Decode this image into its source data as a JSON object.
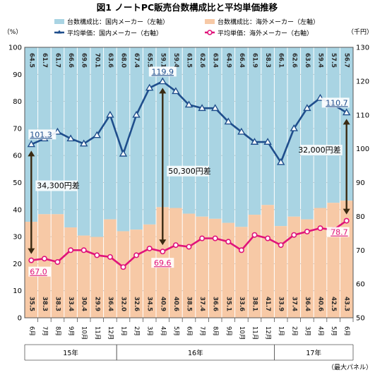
{
  "chart_data": {
    "type": "bar+line",
    "title": "図1 ノートPC販売台数構成比と平均単価推移",
    "left_axis": {
      "unit": "（%）",
      "min": 0,
      "max": 100,
      "step": 10
    },
    "right_axis": {
      "unit": "（千円）",
      "min": 50,
      "max": 130,
      "step": 10
    },
    "months": [
      "6月",
      "7月",
      "8月",
      "9月",
      "10月",
      "11月",
      "12月",
      "1月",
      "2月",
      "3月",
      "4月",
      "5月",
      "6月",
      "7月",
      "8月",
      "9月",
      "10月",
      "11月",
      "12月",
      "1月",
      "2月",
      "3月",
      "4月",
      "5月",
      "6月"
    ],
    "year_groups": [
      {
        "label": "15年",
        "start": 0,
        "end": 6
      },
      {
        "label": "16年",
        "start": 7,
        "end": 18
      },
      {
        "label": "17年",
        "start": 19,
        "end": 24
      }
    ],
    "series": [
      {
        "name": "台数構成比：国内メーカー（左軸）",
        "type": "stacked-bar",
        "axis": "left",
        "color": "#a9d4e3",
        "values": [
          64.5,
          61.7,
          61.7,
          66.6,
          69.6,
          70.1,
          63.6,
          68.0,
          67.4,
          65.5,
          59.1,
          59.4,
          61.5,
          62.6,
          63.4,
          64.9,
          66.4,
          61.9,
          58.3,
          66.1,
          62.6,
          63.6,
          59.4,
          57.5,
          56.7
        ]
      },
      {
        "name": "台数構成比：海外メーカー（左軸）",
        "type": "stacked-bar",
        "axis": "left",
        "color": "#f7c9a6",
        "values": [
          35.5,
          38.3,
          38.3,
          33.4,
          30.4,
          29.9,
          36.4,
          32.0,
          32.6,
          34.5,
          40.9,
          40.6,
          38.5,
          37.4,
          36.6,
          35.1,
          33.6,
          38.1,
          41.7,
          33.9,
          37.4,
          36.4,
          40.6,
          42.5,
          43.3
        ]
      },
      {
        "name": "平均単価：国内メーカー（右軸）",
        "type": "line",
        "axis": "right",
        "color": "#1f4e8c",
        "values": [
          101.3,
          103.0,
          105.0,
          103.0,
          101.5,
          104.0,
          110.0,
          98.5,
          110.0,
          118.0,
          119.9,
          117.0,
          113.0,
          112.0,
          112.0,
          108.0,
          105.0,
          102.0,
          102.0,
          96.0,
          106.0,
          112.0,
          115.0,
          113.0,
          110.7
        ]
      },
      {
        "name": "平均単価：海外メーカー（右軸）",
        "type": "line",
        "axis": "right",
        "color": "#e0137a",
        "values": [
          67.0,
          67.5,
          66.5,
          70.0,
          70.0,
          68.5,
          68.0,
          65.0,
          68.5,
          70.5,
          69.6,
          71.5,
          71.0,
          73.5,
          73.5,
          72.5,
          70.0,
          74.5,
          73.5,
          71.5,
          74.5,
          75.5,
          76.5,
          76.0,
          78.7
        ]
      }
    ],
    "annotations": [
      {
        "text": "34,300円差",
        "from_index": 0
      },
      {
        "text": "50,300円差",
        "from_index": 10
      },
      {
        "text": "32,000円差",
        "from_index": 24
      }
    ],
    "callouts": [
      {
        "series": 2,
        "index": 0,
        "text": "101.3"
      },
      {
        "series": 2,
        "index": 10,
        "text": "119.9"
      },
      {
        "series": 2,
        "index": 24,
        "text": "110.7"
      },
      {
        "series": 3,
        "index": 0,
        "text": "67.0"
      },
      {
        "series": 3,
        "index": 10,
        "text": "69.6"
      },
      {
        "series": 3,
        "index": 24,
        "text": "78.7"
      }
    ],
    "source": "（最大パネル）"
  },
  "colors": {
    "dom_bar": "#a9d4e3",
    "ovs_bar": "#f7c9a6",
    "dom_line": "#1f4e8c",
    "ovs_line": "#e0137a",
    "arrow": "#3a2a12",
    "grid": "#b0b0b0"
  }
}
